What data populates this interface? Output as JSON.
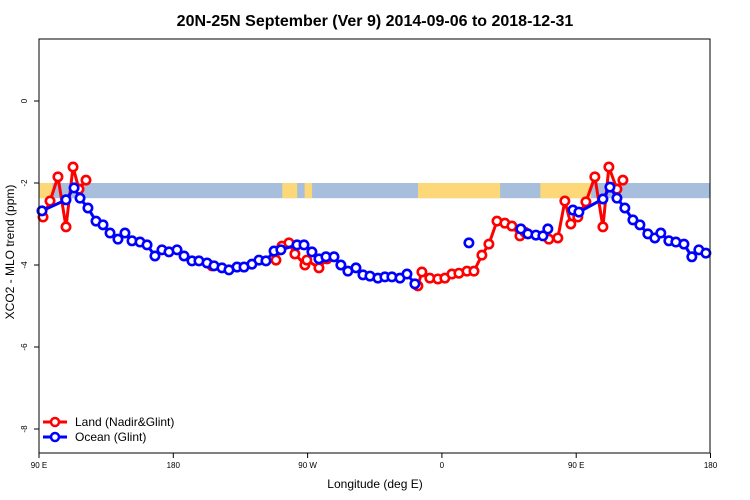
{
  "chart_data": {
    "type": "line",
    "title": "20N-25N September (Ver 9)   2014-09-06 to 2018-12-31",
    "xlabel": "Longitude (deg E)",
    "ylabel": "XCO2 - MLO trend (ppm)",
    "xlim": [
      90,
      450
    ],
    "ylim": [
      -8.6,
      1.5
    ],
    "xticks": [
      90,
      180,
      270,
      360,
      450,
      540
    ],
    "xtick_labels": [
      "90 E",
      "180",
      "90 W",
      "0",
      "90 E",
      "180"
    ],
    "yticks": [
      0,
      -2,
      -4,
      -6,
      -8
    ],
    "ytick_labels": [
      "0",
      "-2",
      "-4",
      "-6",
      "-8"
    ],
    "grid": false,
    "legend_placement": "bottom-left",
    "map_strip": {
      "value_range": [
        -2.37,
        -2.0
      ],
      "ocean_color": "#a7bedc",
      "land_color": "#fdd878",
      "land_lon_ranges": [
        [
          90,
          99
        ],
        [
          253,
          263
        ],
        [
          268,
          273
        ],
        [
          344,
          399
        ],
        [
          426,
          460
        ]
      ]
    },
    "series": [
      {
        "name": "Land (Nadir&Glint)",
        "color": "#ff0000",
        "points": [
          [
            92.7,
            -2.83
          ],
          [
            97.4,
            -2.44
          ],
          [
            102.7,
            -1.85
          ],
          [
            108.1,
            -3.07
          ],
          [
            112.8,
            -1.61
          ],
          [
            116.8,
            -2.15
          ],
          [
            121.5,
            -1.93
          ],
          null,
          [
            205.9,
            -4.02
          ],
          null,
          [
            248.8,
            -3.88
          ],
          [
            252.8,
            -3.54
          ],
          [
            257.5,
            -3.46
          ],
          [
            261.5,
            -3.73
          ],
          [
            268.2,
            -4.0
          ],
          [
            269.5,
            -3.88
          ],
          [
            277.6,
            -4.07
          ],
          [
            283.0,
            -3.85
          ],
          null,
          [
            343.9,
            -4.51
          ],
          [
            346.6,
            -4.17
          ],
          [
            351.9,
            -4.32
          ],
          [
            357.3,
            -4.34
          ],
          [
            362.0,
            -4.32
          ],
          [
            366.7,
            -4.22
          ],
          [
            371.4,
            -4.2
          ],
          [
            376.8,
            -4.15
          ],
          [
            381.5,
            -4.15
          ],
          [
            386.8,
            -3.76
          ],
          [
            391.5,
            -3.49
          ],
          [
            396.9,
            -2.93
          ],
          [
            402.2,
            -2.98
          ],
          [
            406.9,
            -3.05
          ],
          [
            412.3,
            -3.29
          ],
          [
            415.6,
            -3.2
          ],
          [
            431.7,
            -3.37
          ],
          [
            437.7,
            -3.34
          ],
          [
            442.4,
            -2.44
          ],
          [
            446.4,
            -3.0
          ],
          [
            451.1,
            -2.83
          ],
          [
            456.5,
            -2.46
          ],
          [
            462.5,
            -1.85
          ],
          [
            467.9,
            -3.07
          ],
          [
            471.9,
            -1.61
          ],
          [
            477.3,
            -2.15
          ],
          [
            481.3,
            -1.93
          ]
        ]
      },
      {
        "name": "Ocean (Glint)",
        "color": "#0000ff",
        "points": [
          [
            92.0,
            -2.68
          ],
          [
            108.1,
            -2.41
          ],
          [
            113.5,
            -2.12
          ],
          [
            117.5,
            -2.37
          ],
          [
            122.8,
            -2.61
          ],
          [
            128.2,
            -2.93
          ],
          [
            132.9,
            -3.02
          ],
          [
            137.6,
            -3.22
          ],
          [
            142.9,
            -3.37
          ],
          [
            147.6,
            -3.22
          ],
          [
            152.3,
            -3.41
          ],
          [
            157.7,
            -3.44
          ],
          [
            162.4,
            -3.51
          ],
          [
            167.7,
            -3.78
          ],
          [
            172.4,
            -3.63
          ],
          [
            177.1,
            -3.68
          ],
          [
            182.5,
            -3.63
          ],
          [
            187.2,
            -3.78
          ],
          [
            192.5,
            -3.9
          ],
          [
            197.2,
            -3.9
          ],
          [
            202.6,
            -3.95
          ],
          [
            207.3,
            -4.02
          ],
          [
            212.6,
            -4.07
          ],
          [
            217.3,
            -4.12
          ],
          [
            222.7,
            -4.05
          ],
          [
            227.4,
            -4.05
          ],
          [
            232.7,
            -3.98
          ],
          [
            237.4,
            -3.88
          ],
          [
            242.1,
            -3.9
          ],
          [
            247.5,
            -3.66
          ],
          [
            252.1,
            -3.63
          ],
          [
            262.9,
            -3.51
          ],
          [
            267.6,
            -3.51
          ],
          [
            272.9,
            -3.68
          ],
          [
            277.6,
            -3.85
          ],
          [
            282.3,
            -3.8
          ],
          [
            287.7,
            -3.8
          ],
          [
            292.3,
            -4.0
          ],
          [
            297.0,
            -4.15
          ],
          [
            302.4,
            -4.07
          ],
          [
            307.1,
            -4.24
          ],
          [
            311.8,
            -4.27
          ],
          [
            317.1,
            -4.32
          ],
          [
            321.8,
            -4.29
          ],
          [
            326.5,
            -4.29
          ],
          [
            331.9,
            -4.32
          ],
          [
            336.6,
            -4.22
          ],
          [
            341.9,
            -4.46
          ],
          null,
          [
            378.1,
            -3.46
          ],
          null,
          [
            412.9,
            -3.12
          ],
          [
            417.6,
            -3.24
          ],
          [
            423.0,
            -3.27
          ],
          [
            427.7,
            -3.29
          ],
          [
            431.0,
            -3.12
          ],
          null,
          [
            447.8,
            -2.66
          ],
          [
            451.8,
            -2.71
          ],
          [
            467.9,
            -2.39
          ],
          [
            472.6,
            -2.1
          ],
          [
            477.3,
            -2.37
          ],
          [
            482.6,
            -2.61
          ],
          [
            488.0,
            -2.9
          ],
          [
            492.7,
            -3.02
          ],
          [
            498.0,
            -3.24
          ],
          [
            502.7,
            -3.34
          ],
          [
            506.7,
            -3.22
          ],
          [
            512.1,
            -3.41
          ],
          [
            516.8,
            -3.44
          ],
          [
            522.2,
            -3.49
          ],
          [
            527.5,
            -3.8
          ],
          [
            532.2,
            -3.63
          ],
          [
            536.9,
            -3.71
          ]
        ]
      }
    ]
  }
}
